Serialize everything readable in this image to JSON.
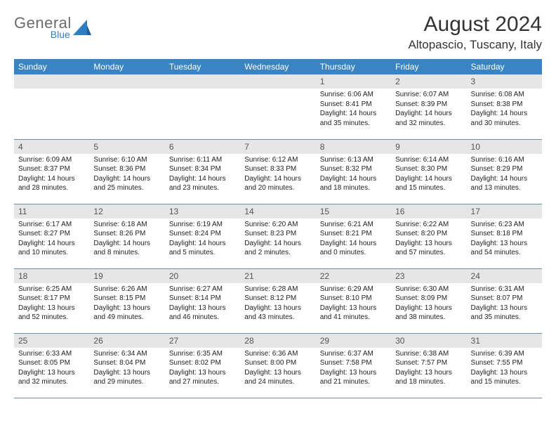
{
  "logo": {
    "text1": "General",
    "text2": "Blue",
    "gray": "#6b6b6b",
    "blue": "#2f7ec2"
  },
  "title": "August 2024",
  "location": "Altopascio, Tuscany, Italy",
  "header_bg": "#3a84c4",
  "daynum_bg": "#e6e6e6",
  "border_color": "#6a90ad",
  "weekdays": [
    "Sunday",
    "Monday",
    "Tuesday",
    "Wednesday",
    "Thursday",
    "Friday",
    "Saturday"
  ],
  "weeks": [
    [
      {
        "n": "",
        "sr": "",
        "ss": "",
        "dl": ""
      },
      {
        "n": "",
        "sr": "",
        "ss": "",
        "dl": ""
      },
      {
        "n": "",
        "sr": "",
        "ss": "",
        "dl": ""
      },
      {
        "n": "",
        "sr": "",
        "ss": "",
        "dl": ""
      },
      {
        "n": "1",
        "sr": "Sunrise: 6:06 AM",
        "ss": "Sunset: 8:41 PM",
        "dl": "Daylight: 14 hours and 35 minutes."
      },
      {
        "n": "2",
        "sr": "Sunrise: 6:07 AM",
        "ss": "Sunset: 8:39 PM",
        "dl": "Daylight: 14 hours and 32 minutes."
      },
      {
        "n": "3",
        "sr": "Sunrise: 6:08 AM",
        "ss": "Sunset: 8:38 PM",
        "dl": "Daylight: 14 hours and 30 minutes."
      }
    ],
    [
      {
        "n": "4",
        "sr": "Sunrise: 6:09 AM",
        "ss": "Sunset: 8:37 PM",
        "dl": "Daylight: 14 hours and 28 minutes."
      },
      {
        "n": "5",
        "sr": "Sunrise: 6:10 AM",
        "ss": "Sunset: 8:36 PM",
        "dl": "Daylight: 14 hours and 25 minutes."
      },
      {
        "n": "6",
        "sr": "Sunrise: 6:11 AM",
        "ss": "Sunset: 8:34 PM",
        "dl": "Daylight: 14 hours and 23 minutes."
      },
      {
        "n": "7",
        "sr": "Sunrise: 6:12 AM",
        "ss": "Sunset: 8:33 PM",
        "dl": "Daylight: 14 hours and 20 minutes."
      },
      {
        "n": "8",
        "sr": "Sunrise: 6:13 AM",
        "ss": "Sunset: 8:32 PM",
        "dl": "Daylight: 14 hours and 18 minutes."
      },
      {
        "n": "9",
        "sr": "Sunrise: 6:14 AM",
        "ss": "Sunset: 8:30 PM",
        "dl": "Daylight: 14 hours and 15 minutes."
      },
      {
        "n": "10",
        "sr": "Sunrise: 6:16 AM",
        "ss": "Sunset: 8:29 PM",
        "dl": "Daylight: 14 hours and 13 minutes."
      }
    ],
    [
      {
        "n": "11",
        "sr": "Sunrise: 6:17 AM",
        "ss": "Sunset: 8:27 PM",
        "dl": "Daylight: 14 hours and 10 minutes."
      },
      {
        "n": "12",
        "sr": "Sunrise: 6:18 AM",
        "ss": "Sunset: 8:26 PM",
        "dl": "Daylight: 14 hours and 8 minutes."
      },
      {
        "n": "13",
        "sr": "Sunrise: 6:19 AM",
        "ss": "Sunset: 8:24 PM",
        "dl": "Daylight: 14 hours and 5 minutes."
      },
      {
        "n": "14",
        "sr": "Sunrise: 6:20 AM",
        "ss": "Sunset: 8:23 PM",
        "dl": "Daylight: 14 hours and 2 minutes."
      },
      {
        "n": "15",
        "sr": "Sunrise: 6:21 AM",
        "ss": "Sunset: 8:21 PM",
        "dl": "Daylight: 14 hours and 0 minutes."
      },
      {
        "n": "16",
        "sr": "Sunrise: 6:22 AM",
        "ss": "Sunset: 8:20 PM",
        "dl": "Daylight: 13 hours and 57 minutes."
      },
      {
        "n": "17",
        "sr": "Sunrise: 6:23 AM",
        "ss": "Sunset: 8:18 PM",
        "dl": "Daylight: 13 hours and 54 minutes."
      }
    ],
    [
      {
        "n": "18",
        "sr": "Sunrise: 6:25 AM",
        "ss": "Sunset: 8:17 PM",
        "dl": "Daylight: 13 hours and 52 minutes."
      },
      {
        "n": "19",
        "sr": "Sunrise: 6:26 AM",
        "ss": "Sunset: 8:15 PM",
        "dl": "Daylight: 13 hours and 49 minutes."
      },
      {
        "n": "20",
        "sr": "Sunrise: 6:27 AM",
        "ss": "Sunset: 8:14 PM",
        "dl": "Daylight: 13 hours and 46 minutes."
      },
      {
        "n": "21",
        "sr": "Sunrise: 6:28 AM",
        "ss": "Sunset: 8:12 PM",
        "dl": "Daylight: 13 hours and 43 minutes."
      },
      {
        "n": "22",
        "sr": "Sunrise: 6:29 AM",
        "ss": "Sunset: 8:10 PM",
        "dl": "Daylight: 13 hours and 41 minutes."
      },
      {
        "n": "23",
        "sr": "Sunrise: 6:30 AM",
        "ss": "Sunset: 8:09 PM",
        "dl": "Daylight: 13 hours and 38 minutes."
      },
      {
        "n": "24",
        "sr": "Sunrise: 6:31 AM",
        "ss": "Sunset: 8:07 PM",
        "dl": "Daylight: 13 hours and 35 minutes."
      }
    ],
    [
      {
        "n": "25",
        "sr": "Sunrise: 6:33 AM",
        "ss": "Sunset: 8:05 PM",
        "dl": "Daylight: 13 hours and 32 minutes."
      },
      {
        "n": "26",
        "sr": "Sunrise: 6:34 AM",
        "ss": "Sunset: 8:04 PM",
        "dl": "Daylight: 13 hours and 29 minutes."
      },
      {
        "n": "27",
        "sr": "Sunrise: 6:35 AM",
        "ss": "Sunset: 8:02 PM",
        "dl": "Daylight: 13 hours and 27 minutes."
      },
      {
        "n": "28",
        "sr": "Sunrise: 6:36 AM",
        "ss": "Sunset: 8:00 PM",
        "dl": "Daylight: 13 hours and 24 minutes."
      },
      {
        "n": "29",
        "sr": "Sunrise: 6:37 AM",
        "ss": "Sunset: 7:58 PM",
        "dl": "Daylight: 13 hours and 21 minutes."
      },
      {
        "n": "30",
        "sr": "Sunrise: 6:38 AM",
        "ss": "Sunset: 7:57 PM",
        "dl": "Daylight: 13 hours and 18 minutes."
      },
      {
        "n": "31",
        "sr": "Sunrise: 6:39 AM",
        "ss": "Sunset: 7:55 PM",
        "dl": "Daylight: 13 hours and 15 minutes."
      }
    ]
  ]
}
